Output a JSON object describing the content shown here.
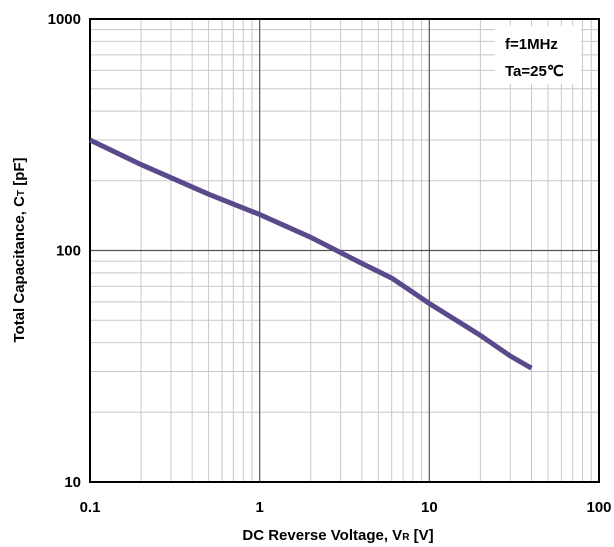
{
  "chart_data": {
    "type": "line",
    "xscale": "log",
    "yscale": "log",
    "xlim": [
      0.1,
      100
    ],
    "ylim": [
      10,
      1000
    ],
    "grid": true,
    "xlabel_main": "DC Reverse Voltage,  V",
    "xlabel_sub": "R",
    "xlabel_unit": " [V]",
    "ylabel_main": "Total Capacitance, C",
    "ylabel_sub": "T",
    "ylabel_unit": " [pF]",
    "x_ticks": [
      {
        "value": 0.1,
        "label": "0.1"
      },
      {
        "value": 1,
        "label": "1"
      },
      {
        "value": 10,
        "label": "10"
      },
      {
        "value": 100,
        "label": "100"
      }
    ],
    "y_ticks": [
      {
        "value": 10,
        "label": "10"
      },
      {
        "value": 100,
        "label": "100"
      },
      {
        "value": 1000,
        "label": "1000"
      }
    ],
    "conditions": [
      "f=1MHz",
      "Ta=25℃"
    ],
    "series": [
      {
        "color": "#5b4a8b",
        "x": [
          0.1,
          0.2,
          0.5,
          1,
          2,
          4,
          6,
          8,
          10,
          20,
          30,
          40
        ],
        "y": [
          300,
          235,
          175,
          143,
          114,
          88,
          76,
          66,
          59,
          43,
          35,
          31
        ]
      }
    ]
  }
}
